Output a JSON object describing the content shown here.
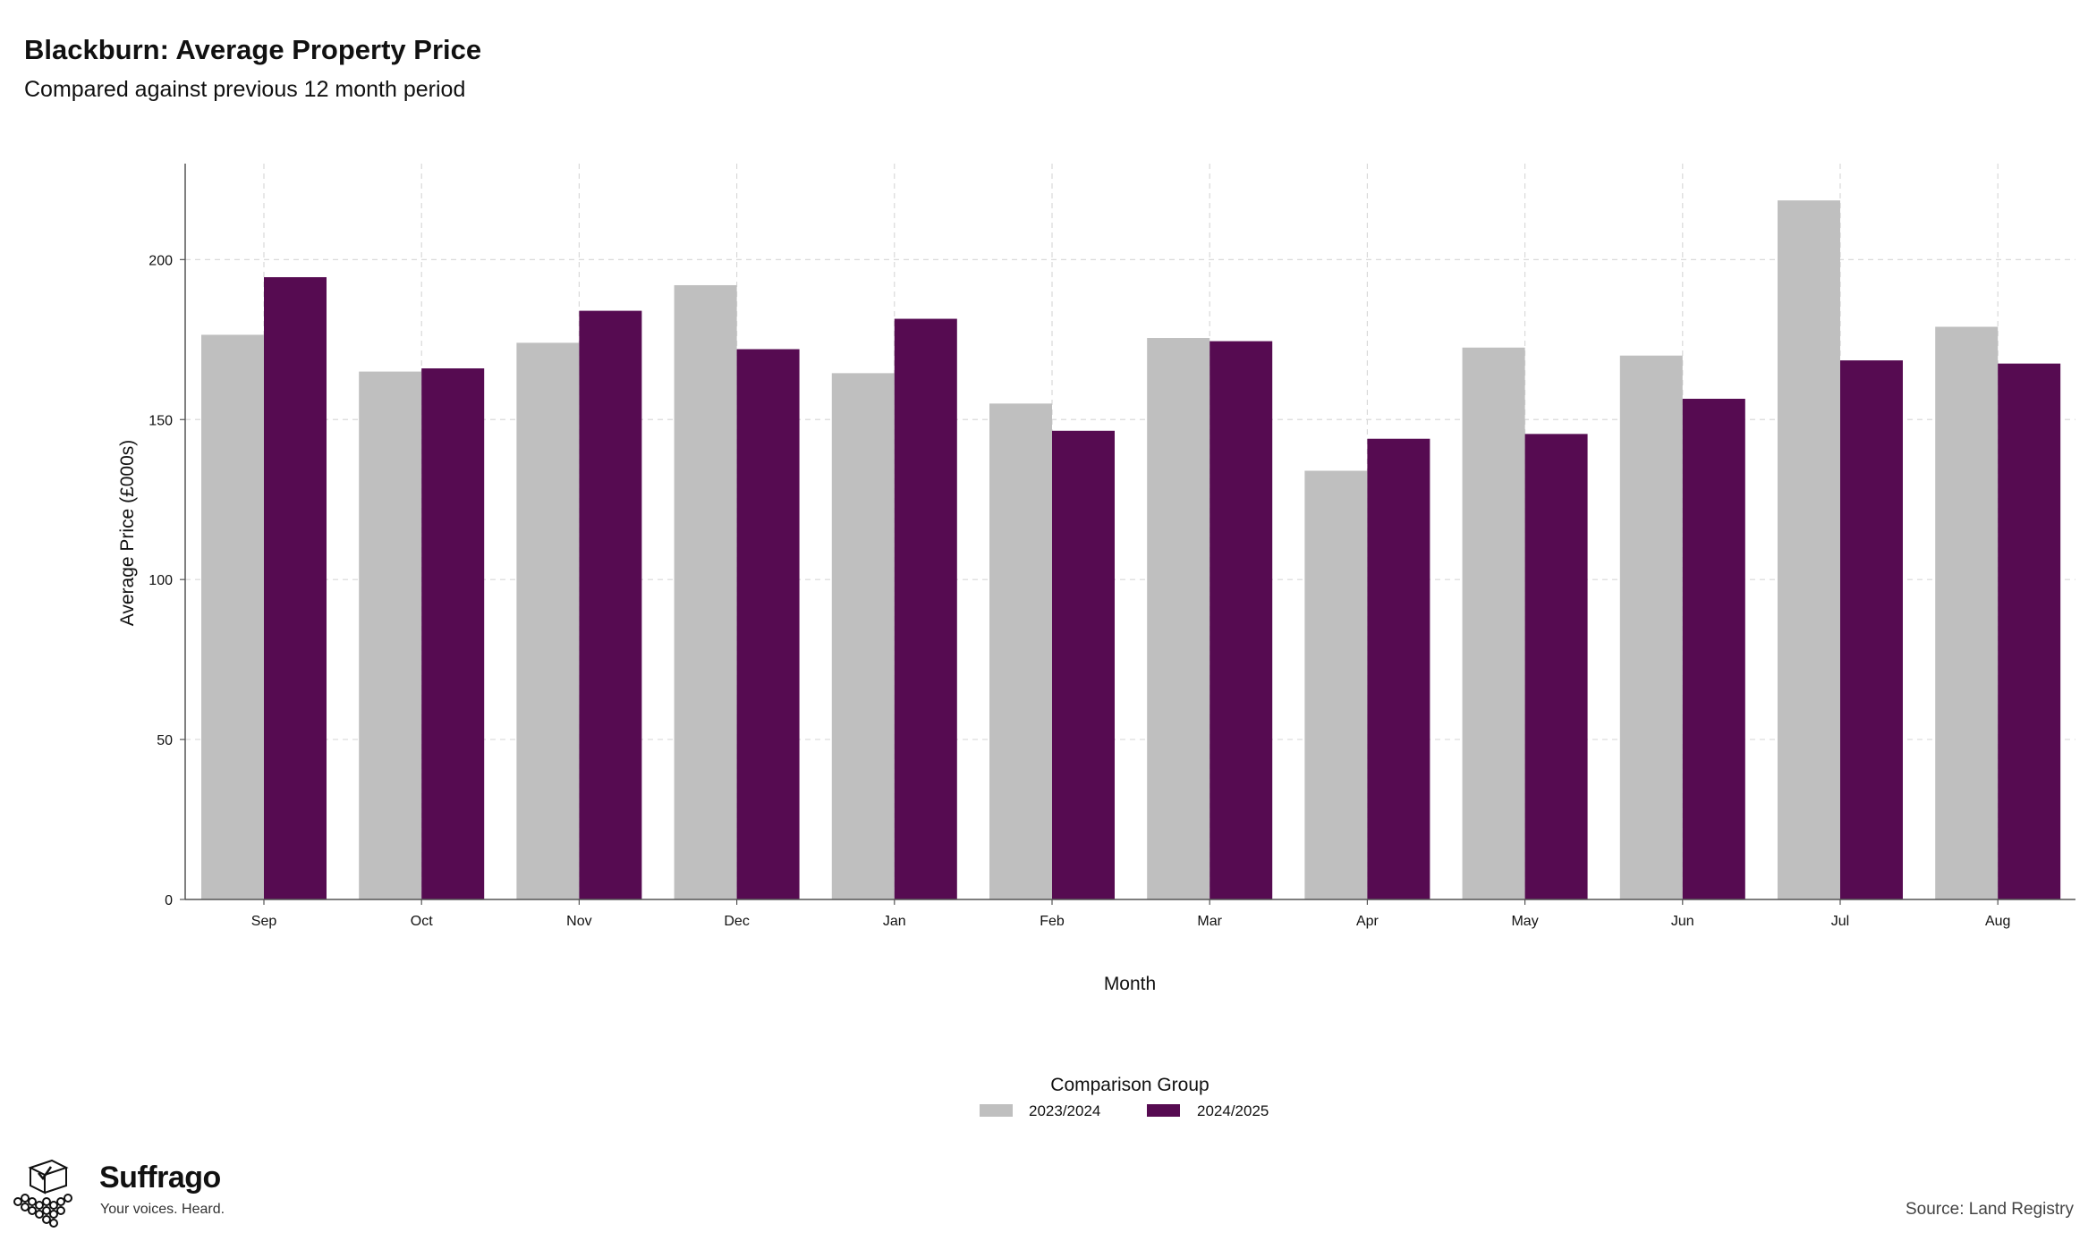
{
  "chart_data": {
    "type": "bar",
    "title": "Blackburn: Average Property Price",
    "subtitle": "Compared against previous 12 month period",
    "xlabel": "Month",
    "ylabel": "Average Price (£000s)",
    "categories": [
      "Sep",
      "Oct",
      "Nov",
      "Dec",
      "Jan",
      "Feb",
      "Mar",
      "Apr",
      "May",
      "Jun",
      "Jul",
      "Aug"
    ],
    "series": [
      {
        "name": "2023/2024",
        "color": "#bfbfbf",
        "values": [
          176.5,
          165,
          174,
          192,
          164.5,
          155,
          175.5,
          134,
          172.5,
          170,
          218.5,
          179
        ]
      },
      {
        "name": "2024/2025",
        "color": "#560b51",
        "values": [
          194.5,
          166,
          184,
          172,
          181.5,
          146.5,
          174.5,
          144,
          145.5,
          156.5,
          168.5,
          167.5
        ]
      }
    ],
    "ylim": [
      0,
      230
    ],
    "yticks": [
      0,
      50,
      100,
      150,
      200
    ],
    "grid": true,
    "legend": {
      "title": "Comparison Group",
      "placement": "bottom-center"
    }
  },
  "branding": {
    "name": "Suffrago",
    "tagline": "Your voices. Heard.",
    "logo_icon": "ballot-box-icon"
  },
  "source": "Source: Land Registry"
}
